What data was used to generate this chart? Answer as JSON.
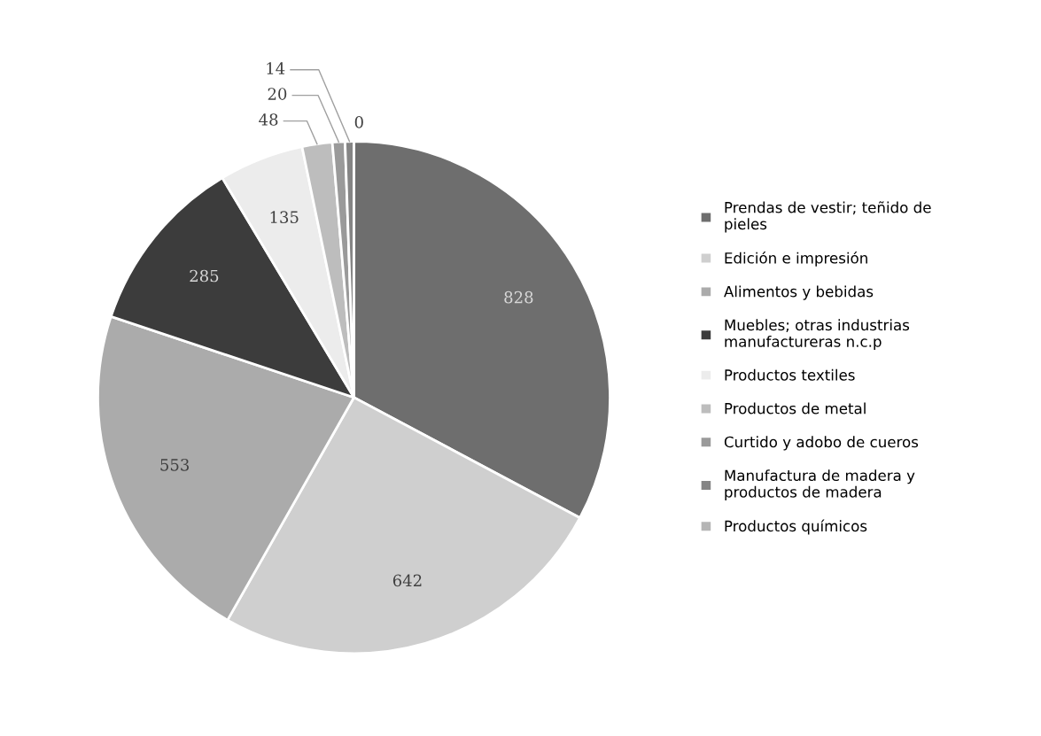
{
  "chart_data": {
    "type": "pie",
    "categories": [
      "Prendas de vestir; teñido de pieles",
      "Edición e impresión",
      "Alimentos y bebidas",
      "Muebles; otras industrias manufactureras n.c.p",
      "Productos textiles",
      "Productos de metal",
      "Curtido y adobo de cueros",
      "Manufactura de madera y productos de madera",
      "Productos químicos"
    ],
    "values": [
      828,
      642,
      553,
      285,
      135,
      48,
      20,
      14,
      0
    ],
    "colors": [
      "#6e6e6e",
      "#cfcfcf",
      "#ababab",
      "#3c3c3c",
      "#ececec",
      "#bdbdbd",
      "#9a9a9a",
      "#858585",
      "#b5b5b5"
    ],
    "value_labels": [
      "828",
      "642",
      "553",
      "285",
      "135",
      "48",
      "20",
      "14",
      "0"
    ],
    "legend": "right"
  }
}
